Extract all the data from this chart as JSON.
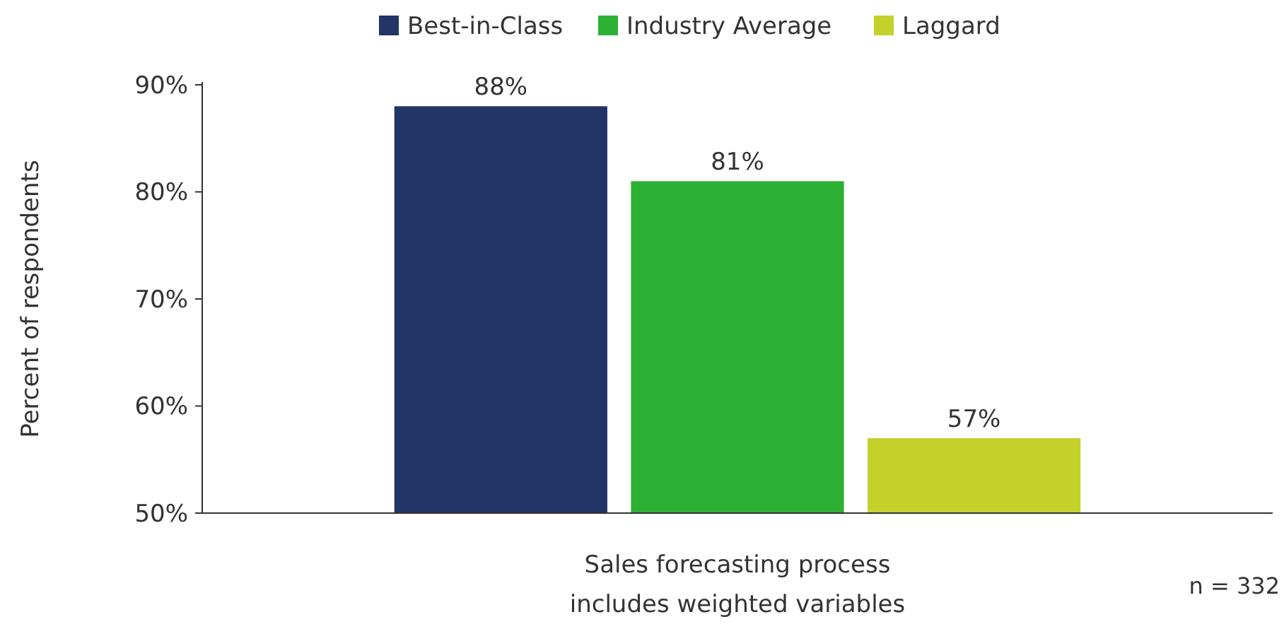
{
  "chart_data": {
    "type": "bar",
    "ylabel": "Percent of respondents",
    "categories": [
      "Sales forecasting process includes weighted variables"
    ],
    "series": [
      {
        "name": "Best-in-Class",
        "color": "#233466",
        "values": [
          88
        ],
        "value_labels": [
          "88%"
        ]
      },
      {
        "name": "Industry Average",
        "color": "#2db135",
        "values": [
          81
        ],
        "value_labels": [
          "81%"
        ]
      },
      {
        "name": "Laggard",
        "color": "#c3d12a",
        "values": [
          57
        ],
        "value_labels": [
          "57%"
        ]
      }
    ],
    "ylim": [
      50,
      90
    ],
    "yticks": [
      {
        "value": 50,
        "label": "50%"
      },
      {
        "value": 60,
        "label": "60%"
      },
      {
        "value": 70,
        "label": "70%"
      },
      {
        "value": 80,
        "label": "80%"
      },
      {
        "value": 90,
        "label": "90%"
      }
    ],
    "grid": false,
    "legend": "top",
    "annotations": [
      "n = 332"
    ]
  }
}
